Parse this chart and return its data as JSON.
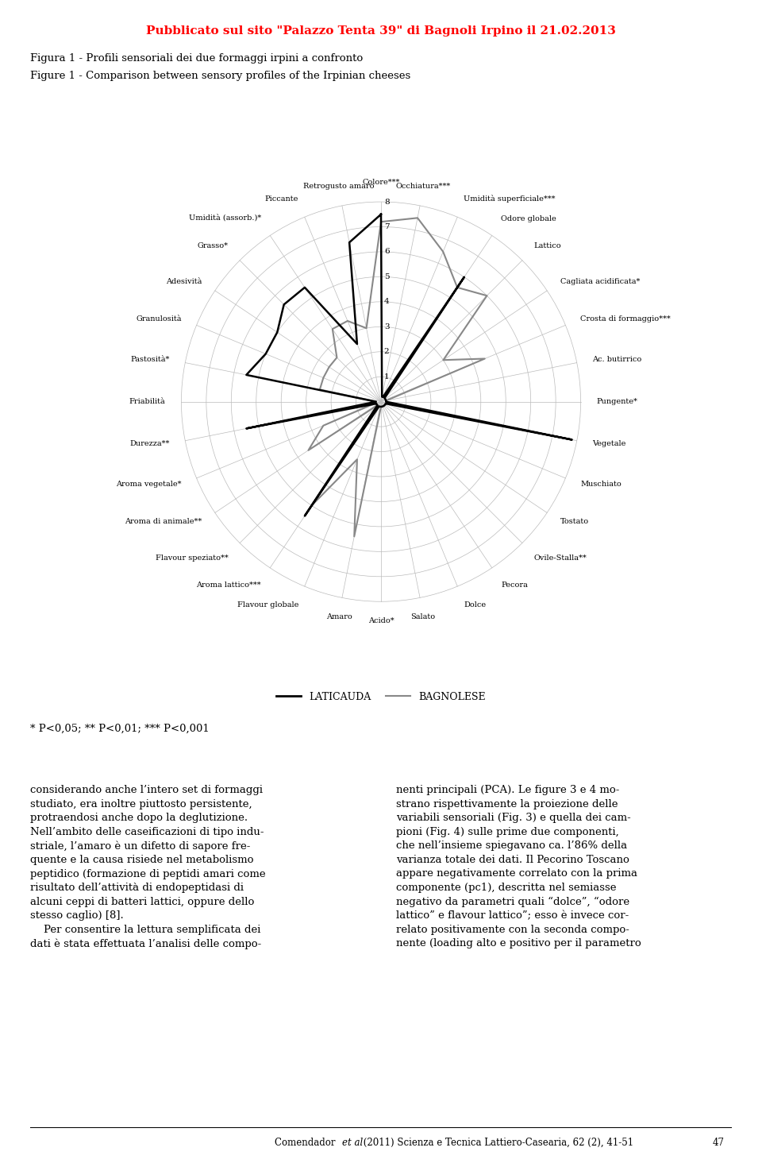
{
  "title_red": "Pubblicato sul sito \"Palazzo Tenta 39\" di Bagnoli Irpino il 21.02.2013",
  "fig_title_it": "Figura 1 - Profili sensoriali dei due formaggi irpini a confronto",
  "fig_title_en": "Figure 1 - Comparison between sensory profiles of the Irpinian cheeses",
  "categories": [
    "Colore***",
    "Occhiatura***",
    "Umidità superficiale***",
    "Odore globale",
    "Lattico",
    "Cagliata acidificata*",
    "Crosta di formaggio***",
    "Ac. butirrico",
    "Pungente*",
    "Vegetale",
    "Muschiato",
    "Tostato",
    "Ovile-Stalla**",
    "Pecora",
    "Dolce",
    "Salato",
    "Acido*",
    "Amaro",
    "Flavour globale",
    "Aroma lattico***",
    "Flavour speziato**",
    "Aroma di animale**",
    "Aroma vegetale*",
    "Durezza**",
    "Friabilità",
    "Pastosità*",
    "Granulosità",
    "Adesività",
    "Grasso*",
    "Umidità (assorb.)*",
    "Piccante",
    "Retrogusto amaro"
  ],
  "laticauda": [
    7.5,
    0.2,
    0.2,
    6.0,
    0.2,
    0.2,
    0.2,
    0.2,
    0.2,
    7.8,
    0.2,
    0.2,
    0.2,
    0.2,
    0.2,
    0.2,
    0.2,
    0.2,
    0.2,
    5.5,
    0.2,
    0.2,
    0.2,
    5.5,
    0.2,
    5.5,
    5.0,
    5.0,
    5.5,
    5.5,
    2.5,
    6.5
  ],
  "bagnolese": [
    7.2,
    7.5,
    6.5,
    5.5,
    6.0,
    3.0,
    4.5,
    0.2,
    0.2,
    0.2,
    0.2,
    0.2,
    0.2,
    0.2,
    0.2,
    0.2,
    0.2,
    5.5,
    2.5,
    5.0,
    0.2,
    3.5,
    2.5,
    0.2,
    0.2,
    2.5,
    2.5,
    2.5,
    2.5,
    3.5,
    3.5,
    3.0
  ],
  "laticauda_color": "#000000",
  "bagnolese_color": "#888888",
  "grid_color": "#bbbbbb",
  "background_color": "#ffffff",
  "max_val": 8,
  "legend_laticauda": "LATICAUDA",
  "legend_bagnolese": "BAGNOLESE",
  "footnote": "* P<0,05; ** P<0,01; *** P<0,001",
  "footer_page": "47"
}
